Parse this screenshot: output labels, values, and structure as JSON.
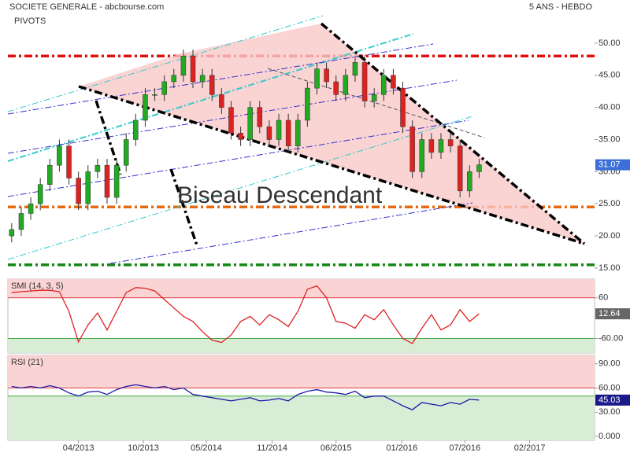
{
  "chart_data": [
    {
      "type": "candlestick",
      "title": "SOCIETE GENERALE - abcbourse.com",
      "subtitle": "PIVOTS",
      "period": "5 ANS - HEBDO",
      "annotation": "Biseau Descendant",
      "colors": {
        "up": "#22aa22",
        "down": "#dd2222"
      },
      "open": [
        20,
        21,
        23.5,
        25,
        28,
        31,
        34,
        29,
        25,
        30,
        31,
        26,
        31,
        35,
        38,
        42,
        42,
        44,
        45,
        48,
        44,
        45,
        42,
        40,
        36,
        35,
        40,
        37,
        35,
        38,
        34,
        38,
        43,
        46,
        44,
        42,
        45,
        47,
        41,
        42,
        45,
        43,
        37,
        30,
        35,
        33,
        35,
        34,
        27,
        30
      ],
      "high": [
        22,
        24.5,
        26,
        29,
        32,
        35,
        35,
        30,
        31,
        32,
        32,
        32,
        36,
        39,
        43,
        43,
        45,
        46,
        49,
        49,
        46,
        46,
        43,
        41,
        37,
        41,
        41,
        38,
        39,
        39,
        39,
        44,
        47,
        47,
        45,
        46,
        48,
        48,
        43,
        46,
        46,
        44,
        38,
        36,
        36,
        36,
        36,
        35,
        31,
        32
      ],
      "low": [
        19,
        20,
        22.5,
        24,
        27,
        30,
        28,
        24,
        24,
        29,
        25,
        25,
        30,
        34,
        37,
        41,
        41,
        43,
        44,
        43,
        43,
        41,
        39,
        35,
        34,
        34,
        36,
        34,
        34,
        33,
        33,
        37,
        42,
        43,
        41,
        41,
        44,
        40,
        40,
        41,
        42,
        36,
        29,
        29,
        32,
        32,
        33,
        26,
        26,
        29
      ],
      "close": [
        21,
        23.5,
        25,
        28,
        31,
        34,
        29,
        25,
        30,
        31,
        26,
        31,
        35,
        38,
        42,
        42,
        44,
        45,
        48,
        44,
        45,
        42,
        40,
        36,
        35,
        40,
        37,
        35,
        38,
        34,
        38,
        43,
        46,
        44,
        42,
        45,
        47,
        41,
        42,
        45,
        43,
        37,
        30,
        35,
        33,
        35,
        34,
        27,
        30,
        31.07
      ],
      "levels": [
        {
          "value": 48,
          "color": "#e01010"
        },
        {
          "value": 24.5,
          "color": "#e86a10"
        },
        {
          "value": 15.5,
          "color": "#118811"
        }
      ],
      "xlim": [
        -0.4,
        61.1
      ],
      "xticks": [
        {
          "value": 7.0,
          "label": "04/2013"
        },
        {
          "value": 13.8,
          "label": "10/2013"
        },
        {
          "value": 20.4,
          "label": "05/2014"
        },
        {
          "value": 27.3,
          "label": "11/2014"
        },
        {
          "value": 34.0,
          "label": "06/2015"
        },
        {
          "value": 40.9,
          "label": "01/2016"
        },
        {
          "value": 47.5,
          "label": "07/2016"
        },
        {
          "value": 54.3,
          "label": "02/2017"
        }
      ],
      "ylim": [
        14.5,
        55.5
      ],
      "yticks": [
        {
          "value": 15,
          "label": "15.00"
        },
        {
          "value": 20,
          "label": "20.00"
        },
        {
          "value": 25,
          "label": "25.00"
        },
        {
          "value": 30,
          "label": "30.00"
        },
        {
          "value": 35,
          "label": "35.00"
        },
        {
          "value": 40,
          "label": "40.00"
        },
        {
          "value": 45,
          "label": "45.00"
        },
        {
          "value": 50,
          "label": "50.00"
        }
      ]
    },
    {
      "type": "line",
      "title": "SMI (14, 3, 5)",
      "series": [
        {
          "name": "SMI",
          "color": "#dd2222",
          "values": [
            75,
            78,
            80,
            82,
            82,
            78,
            20,
            -70,
            -20,
            15,
            -35,
            20,
            75,
            90,
            88,
            80,
            55,
            30,
            5,
            -10,
            -40,
            -65,
            -72,
            -50,
            -10,
            5,
            -20,
            10,
            -5,
            -25,
            20,
            85,
            95,
            60,
            -10,
            -15,
            -30,
            10,
            -5,
            25,
            -20,
            -60,
            -75,
            -30,
            10,
            -35,
            -20,
            25,
            -10,
            12.64
          ]
        }
      ],
      "zones": {
        "upper": 60,
        "lower": -60,
        "upper_color": "#fad4d4",
        "lower_color": "#d8ecd6"
      },
      "ylim": [
        -103,
        115
      ],
      "yticks": [
        {
          "value": -60,
          "label": "-60.00"
        },
        60
      ]
    },
    {
      "type": "line",
      "title": "RSI (21)",
      "series": [
        {
          "name": "RSI",
          "color": "#1a1aa8",
          "values": [
            62,
            60,
            62,
            60,
            63,
            60,
            54,
            50,
            55,
            56,
            52,
            58,
            62,
            64,
            62,
            60,
            62,
            58,
            60,
            52,
            50,
            48,
            46,
            44,
            46,
            48,
            44,
            45,
            47,
            44,
            52,
            56,
            58,
            55,
            54,
            52,
            56,
            48,
            50,
            50,
            44,
            38,
            33,
            42,
            40,
            38,
            42,
            40,
            46,
            45.03
          ]
        }
      ],
      "zones": {
        "upper": 60,
        "lower": 50,
        "upper_color": "#fad4d4",
        "lower_color": "#d8ecd6"
      },
      "ylim": [
        -4.8,
        100.5
      ],
      "yticks": [
        {
          "value": 0,
          "label": "0.000"
        },
        {
          "value": 30,
          "label": "30.00"
        },
        {
          "value": 60,
          "label": "60.00"
        },
        {
          "value": 90,
          "label": "90.00"
        }
      ]
    }
  ]
}
